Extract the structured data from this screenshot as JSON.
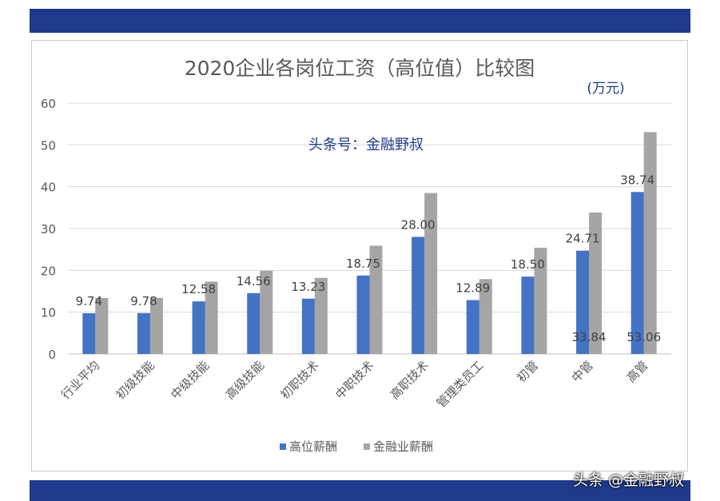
{
  "chart_data": {
    "type": "bar",
    "title": "2020企业各岗位工资（高位值）比较图",
    "unit_label": "(万元)",
    "annotation": "头条号：金融野叔",
    "categories": [
      "行业平均",
      "初级技能",
      "中级技能",
      "高级技能",
      "初职技术",
      "中职技术",
      "高职技术",
      "管理类员工",
      "初管",
      "中管",
      "高管"
    ],
    "series": [
      {
        "name": "高位薪酬",
        "color": "#4472c4",
        "values": [
          9.74,
          9.78,
          12.58,
          14.56,
          13.23,
          18.75,
          28.0,
          12.89,
          18.5,
          24.71,
          38.74
        ],
        "labels": [
          "9.74",
          "9.78",
          "12.58",
          "14.56",
          "13.23",
          "18.75",
          "28.00",
          "12.89",
          "18.50",
          "24.71",
          "38.74"
        ]
      },
      {
        "name": "金融业薪酬",
        "color": "#a5a5a5",
        "values": [
          13.4,
          13.4,
          17.3,
          19.9,
          18.2,
          25.9,
          38.5,
          17.9,
          25.4,
          33.84,
          53.06
        ],
        "labels": [
          "",
          "",
          "",
          "",
          "",
          "",
          "",
          "",
          "",
          "33.84",
          "53.06"
        ]
      }
    ],
    "ylim": [
      0,
      60
    ],
    "yticks": [
      0,
      10,
      20,
      30,
      40,
      50,
      60
    ],
    "grid": true,
    "legend": "bottom"
  },
  "watermark": "头条 @金融野叔"
}
